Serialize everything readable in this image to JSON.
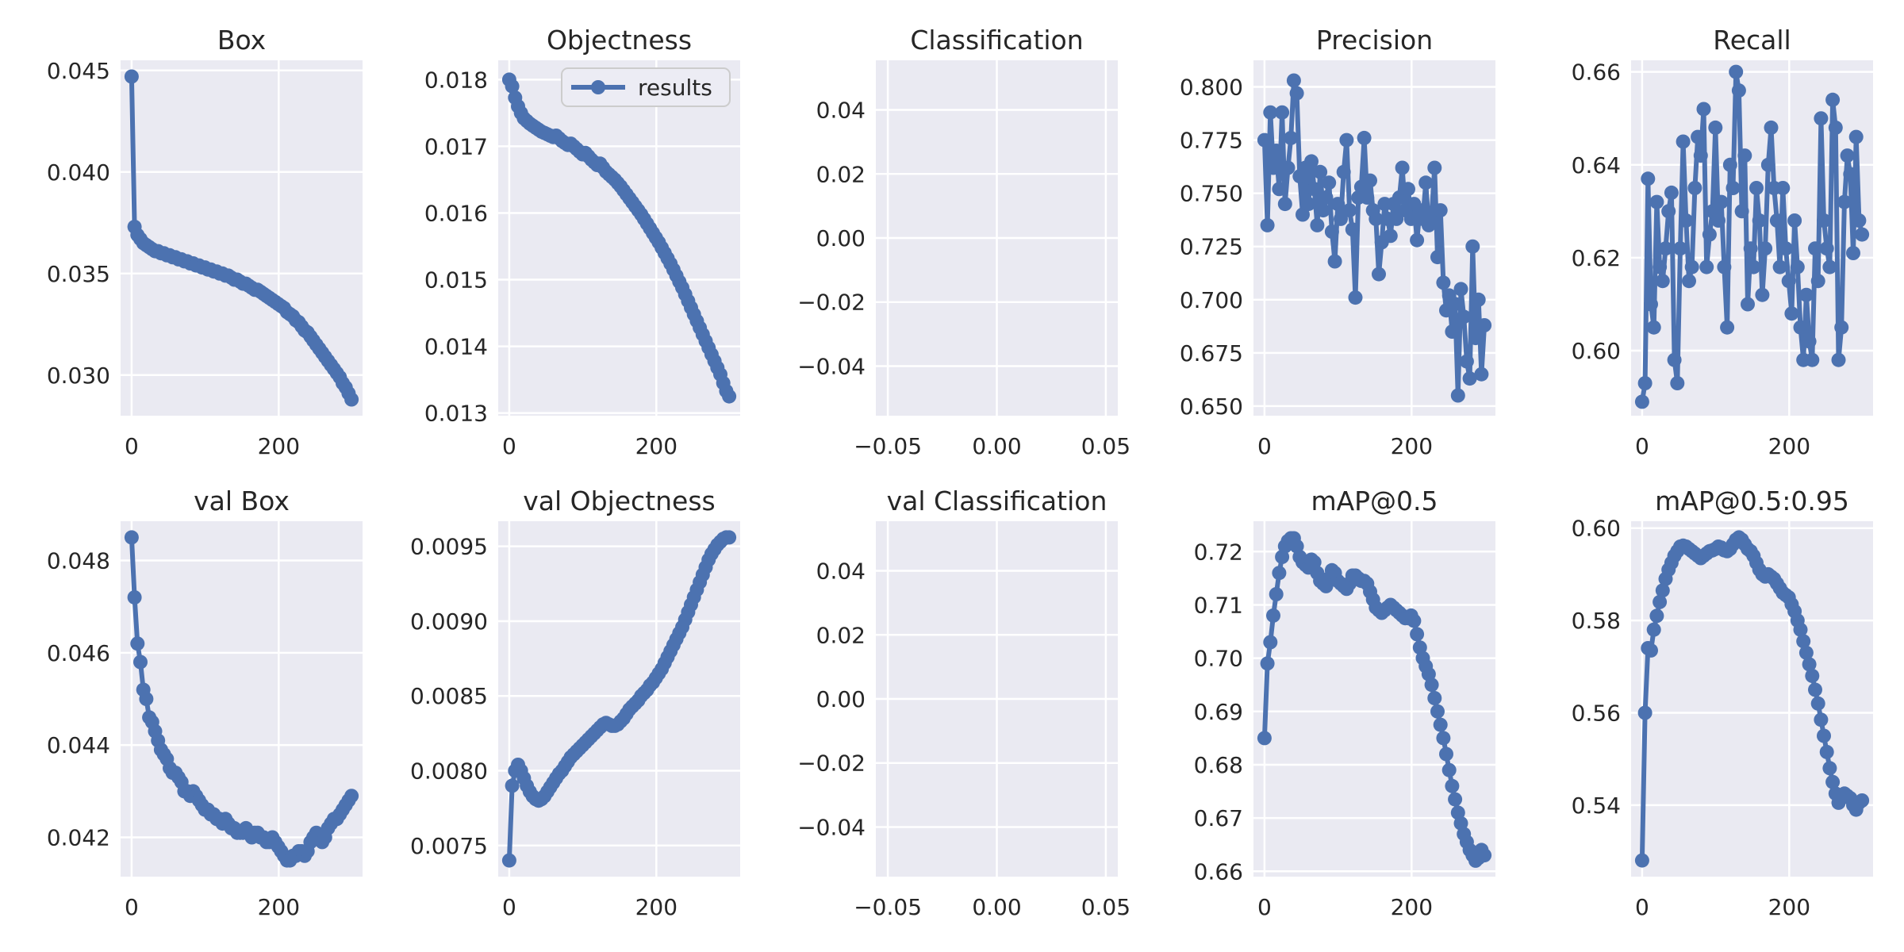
{
  "figure": {
    "kind": "training-results-figure",
    "grid": "2 rows x 5 columns",
    "background": "#ffffff"
  },
  "style": {
    "panel_bg": "#EAEAF2",
    "grid_color": "#FFFFFF",
    "line_color": "#4C72B0",
    "marker_color": "#4C72B0",
    "text_color": "#262626",
    "legend_face": "#ECECF4",
    "legend_edge": "#CCCCCC"
  },
  "chart_data": [
    {
      "type": "line",
      "title": "Box",
      "xlim": [
        -15,
        314
      ],
      "ylim": [
        0.028,
        0.0455
      ],
      "x_ticks": {
        "labels": [
          "0",
          "200"
        ],
        "values": [
          0,
          200
        ]
      },
      "y_ticks": {
        "labels": [
          "0.045",
          "0.040",
          "0.035",
          "0.030"
        ],
        "values": [
          0.045,
          0.04,
          0.035,
          0.03
        ]
      },
      "series": {
        "name": "results",
        "x_start": 0,
        "x_end": 299,
        "y": [
          0.0447,
          0.0373,
          0.0369,
          0.0367,
          0.0365,
          0.0364,
          0.0363,
          0.0362,
          0.0361,
          0.0361,
          0.036,
          0.036,
          0.0359,
          0.0359,
          0.0358,
          0.0358,
          0.0357,
          0.0357,
          0.0356,
          0.0356,
          0.0355,
          0.0355,
          0.0354,
          0.0354,
          0.0353,
          0.0353,
          0.0352,
          0.0352,
          0.0351,
          0.0351,
          0.035,
          0.035,
          0.0349,
          0.0349,
          0.0348,
          0.0347,
          0.0347,
          0.0346,
          0.0345,
          0.0345,
          0.0344,
          0.0343,
          0.0342,
          0.0342,
          0.0341,
          0.034,
          0.0339,
          0.0338,
          0.0337,
          0.0336,
          0.0335,
          0.0334,
          0.0333,
          0.0331,
          0.033,
          0.0329,
          0.0327,
          0.0326,
          0.0324,
          0.0322,
          0.0321,
          0.0319,
          0.0317,
          0.0315,
          0.0313,
          0.0311,
          0.0309,
          0.0307,
          0.0305,
          0.0303,
          0.0301,
          0.0299,
          0.0296,
          0.0294,
          0.0291,
          0.0288
        ]
      }
    },
    {
      "type": "line",
      "title": "Objectness",
      "legend": {
        "label": "results"
      },
      "xlim": [
        -15,
        314
      ],
      "ylim": [
        0.01296,
        0.01829
      ],
      "x_ticks": {
        "labels": [
          "0",
          "200"
        ],
        "values": [
          0,
          200
        ]
      },
      "y_ticks": {
        "labels": [
          "0.018",
          "0.017",
          "0.016",
          "0.015",
          "0.014",
          "0.013"
        ],
        "values": [
          0.018,
          0.017,
          0.016,
          0.015,
          0.014,
          0.013
        ]
      },
      "series": {
        "name": "results",
        "x_start": 0,
        "x_end": 299,
        "y": [
          0.018,
          0.0179,
          0.01773,
          0.0176,
          0.0175,
          0.01742,
          0.01738,
          0.01734,
          0.01731,
          0.01728,
          0.01725,
          0.01722,
          0.0172,
          0.01718,
          0.01716,
          0.01714,
          0.01716,
          0.01712,
          0.01708,
          0.01705,
          0.01702,
          0.01704,
          0.017,
          0.01696,
          0.01692,
          0.01688,
          0.0169,
          0.01685,
          0.0168,
          0.01676,
          0.01672,
          0.01674,
          0.01668,
          0.01662,
          0.01658,
          0.01654,
          0.0165,
          0.01645,
          0.0164,
          0.01634,
          0.01628,
          0.01622,
          0.01616,
          0.0161,
          0.01604,
          0.01598,
          0.01591,
          0.01584,
          0.01577,
          0.0157,
          0.01563,
          0.01556,
          0.01548,
          0.0154,
          0.01532,
          0.01524,
          0.01515,
          0.01506,
          0.01497,
          0.01488,
          0.01478,
          0.01468,
          0.01458,
          0.01448,
          0.01438,
          0.01428,
          0.01418,
          0.01408,
          0.01398,
          0.01388,
          0.01378,
          0.01368,
          0.01358,
          0.01345,
          0.01333,
          0.01325
        ]
      }
    },
    {
      "type": "line",
      "title": "Classification",
      "empty": true,
      "xlim": [
        -0.0555,
        0.0555
      ],
      "ylim": [
        -0.0555,
        0.0555
      ],
      "x_ticks": {
        "labels": [
          "−0.05",
          "0.00",
          "0.05"
        ],
        "values": [
          -0.05,
          0.0,
          0.05
        ]
      },
      "y_ticks": {
        "labels": [
          "0.04",
          "0.02",
          "0.00",
          "−0.02",
          "−0.04"
        ],
        "values": [
          0.04,
          0.02,
          0.0,
          -0.02,
          -0.04
        ]
      },
      "series": null
    },
    {
      "type": "line",
      "title": "Precision",
      "xlim": [
        -15,
        314
      ],
      "ylim": [
        0.6455,
        0.8125
      ],
      "x_ticks": {
        "labels": [
          "0",
          "200"
        ],
        "values": [
          0,
          200
        ]
      },
      "y_ticks": {
        "labels": [
          "0.800",
          "0.775",
          "0.750",
          "0.725",
          "0.700",
          "0.675",
          "0.650"
        ],
        "values": [
          0.8,
          0.775,
          0.75,
          0.725,
          0.7,
          0.675,
          0.65
        ]
      },
      "series": {
        "name": "results",
        "x_start": 0,
        "x_end": 299,
        "y": [
          0.775,
          0.735,
          0.788,
          0.762,
          0.77,
          0.752,
          0.788,
          0.745,
          0.762,
          0.776,
          0.803,
          0.797,
          0.758,
          0.74,
          0.762,
          0.745,
          0.765,
          0.752,
          0.735,
          0.76,
          0.742,
          0.748,
          0.755,
          0.732,
          0.718,
          0.745,
          0.738,
          0.76,
          0.775,
          0.742,
          0.733,
          0.701,
          0.748,
          0.753,
          0.776,
          0.748,
          0.756,
          0.742,
          0.738,
          0.712,
          0.727,
          0.745,
          0.738,
          0.73,
          0.745,
          0.738,
          0.748,
          0.762,
          0.742,
          0.752,
          0.738,
          0.745,
          0.728,
          0.742,
          0.738,
          0.755,
          0.735,
          0.74,
          0.762,
          0.72,
          0.742,
          0.708,
          0.695,
          0.702,
          0.685,
          0.698,
          0.655,
          0.705,
          0.692,
          0.671,
          0.663,
          0.725,
          0.682,
          0.7,
          0.665,
          0.688
        ]
      }
    },
    {
      "type": "line",
      "title": "Recall",
      "xlim": [
        -15,
        314
      ],
      "ylim": [
        0.586,
        0.6625
      ],
      "x_ticks": {
        "labels": [
          "0",
          "200"
        ],
        "values": [
          0,
          200
        ]
      },
      "y_ticks": {
        "labels": [
          "0.66",
          "0.64",
          "0.62",
          "0.60"
        ],
        "values": [
          0.66,
          0.64,
          0.62,
          0.6
        ]
      },
      "series": {
        "name": "results",
        "x_start": 0,
        "x_end": 299,
        "y": [
          0.589,
          0.593,
          0.637,
          0.61,
          0.605,
          0.632,
          0.618,
          0.615,
          0.622,
          0.63,
          0.634,
          0.598,
          0.593,
          0.622,
          0.645,
          0.628,
          0.615,
          0.618,
          0.635,
          0.646,
          0.642,
          0.652,
          0.618,
          0.625,
          0.63,
          0.648,
          0.628,
          0.632,
          0.618,
          0.605,
          0.64,
          0.635,
          0.66,
          0.656,
          0.63,
          0.642,
          0.61,
          0.622,
          0.618,
          0.635,
          0.628,
          0.612,
          0.622,
          0.64,
          0.648,
          0.635,
          0.628,
          0.618,
          0.635,
          0.622,
          0.615,
          0.608,
          0.628,
          0.618,
          0.605,
          0.598,
          0.612,
          0.602,
          0.598,
          0.622,
          0.615,
          0.65,
          0.628,
          0.622,
          0.618,
          0.654,
          0.648,
          0.598,
          0.605,
          0.632,
          0.642,
          0.638,
          0.621,
          0.646,
          0.628,
          0.625
        ]
      }
    },
    {
      "type": "line",
      "title": "val Box",
      "xlim": [
        -15,
        314
      ],
      "ylim": [
        0.04115,
        0.04885
      ],
      "x_ticks": {
        "labels": [
          "0",
          "200"
        ],
        "values": [
          0,
          200
        ]
      },
      "y_ticks": {
        "labels": [
          "0.048",
          "0.046",
          "0.044",
          "0.042"
        ],
        "values": [
          0.048,
          0.046,
          0.044,
          0.042
        ]
      },
      "series": {
        "name": "results",
        "x_start": 0,
        "x_end": 299,
        "y": [
          0.0485,
          0.0472,
          0.0462,
          0.0458,
          0.0452,
          0.045,
          0.0446,
          0.0445,
          0.0443,
          0.0441,
          0.0439,
          0.0438,
          0.0437,
          0.0435,
          0.0434,
          0.0434,
          0.0433,
          0.0432,
          0.043,
          0.043,
          0.0429,
          0.043,
          0.0429,
          0.0428,
          0.0427,
          0.0426,
          0.0426,
          0.0425,
          0.0425,
          0.0424,
          0.0424,
          0.0423,
          0.0424,
          0.0423,
          0.0422,
          0.0422,
          0.0421,
          0.0421,
          0.0421,
          0.0422,
          0.0421,
          0.042,
          0.0421,
          0.0421,
          0.042,
          0.042,
          0.0419,
          0.0419,
          0.042,
          0.0419,
          0.0418,
          0.0417,
          0.0416,
          0.0415,
          0.0415,
          0.0416,
          0.0416,
          0.0417,
          0.0417,
          0.0416,
          0.0417,
          0.0419,
          0.042,
          0.0421,
          0.042,
          0.0419,
          0.042,
          0.0422,
          0.0423,
          0.0424,
          0.0424,
          0.0425,
          0.0426,
          0.0427,
          0.0428,
          0.0429
        ]
      }
    },
    {
      "type": "line",
      "title": "val Objectness",
      "xlim": [
        -15,
        314
      ],
      "ylim": [
        0.007292,
        0.009668
      ],
      "x_ticks": {
        "labels": [
          "0",
          "200"
        ],
        "values": [
          0,
          200
        ]
      },
      "y_ticks": {
        "labels": [
          "0.0095",
          "0.0090",
          "0.0085",
          "0.0080",
          "0.0075"
        ],
        "values": [
          0.0095,
          0.009,
          0.0085,
          0.008,
          0.0075
        ]
      },
      "series": {
        "name": "results",
        "x_start": 0,
        "x_end": 299,
        "y": [
          0.0074,
          0.0079,
          0.008,
          0.00804,
          0.008,
          0.00795,
          0.0079,
          0.00786,
          0.00783,
          0.00781,
          0.0078,
          0.00781,
          0.00783,
          0.00786,
          0.00789,
          0.00792,
          0.00795,
          0.00798,
          0.008,
          0.00803,
          0.00806,
          0.00809,
          0.00811,
          0.00813,
          0.00815,
          0.00817,
          0.00819,
          0.00821,
          0.00823,
          0.00825,
          0.00827,
          0.00829,
          0.00831,
          0.00832,
          0.00831,
          0.0083,
          0.0083,
          0.00831,
          0.00833,
          0.00835,
          0.00838,
          0.00841,
          0.00843,
          0.00845,
          0.00847,
          0.0085,
          0.00852,
          0.00854,
          0.00857,
          0.00859,
          0.00862,
          0.00865,
          0.00868,
          0.00872,
          0.00876,
          0.0088,
          0.00884,
          0.00888,
          0.00892,
          0.00896,
          0.00901,
          0.00906,
          0.00911,
          0.00916,
          0.00921,
          0.00926,
          0.00931,
          0.00936,
          0.00941,
          0.00945,
          0.00948,
          0.00951,
          0.00953,
          0.00955,
          0.00956,
          0.00956
        ]
      }
    },
    {
      "type": "line",
      "title": "val Classification",
      "empty": true,
      "xlim": [
        -0.0555,
        0.0555
      ],
      "ylim": [
        -0.0555,
        0.0555
      ],
      "x_ticks": {
        "labels": [
          "−0.05",
          "0.00",
          "0.05"
        ],
        "values": [
          -0.05,
          0.0,
          0.05
        ]
      },
      "y_ticks": {
        "labels": [
          "0.04",
          "0.02",
          "0.00",
          "−0.02",
          "−0.04"
        ],
        "values": [
          0.04,
          0.02,
          0.0,
          -0.02,
          -0.04
        ]
      },
      "series": null
    },
    {
      "type": "line",
      "title": "mAP@0.5",
      "xlim": [
        -15,
        314
      ],
      "ylim": [
        0.659,
        0.7257
      ],
      "x_ticks": {
        "labels": [
          "0",
          "200"
        ],
        "values": [
          0,
          200
        ]
      },
      "y_ticks": {
        "labels": [
          "0.72",
          "0.71",
          "0.70",
          "0.69",
          "0.68",
          "0.67",
          "0.66"
        ],
        "values": [
          0.72,
          0.71,
          0.7,
          0.69,
          0.68,
          0.67,
          0.66
        ]
      },
      "series": {
        "name": "results",
        "x_start": 0,
        "x_end": 299,
        "y": [
          0.685,
          0.699,
          0.703,
          0.708,
          0.712,
          0.716,
          0.719,
          0.721,
          0.722,
          0.7225,
          0.7225,
          0.721,
          0.719,
          0.718,
          0.7175,
          0.717,
          0.7185,
          0.718,
          0.716,
          0.7145,
          0.714,
          0.7135,
          0.715,
          0.7165,
          0.716,
          0.7145,
          0.714,
          0.7135,
          0.713,
          0.714,
          0.7155,
          0.7155,
          0.715,
          0.7145,
          0.7145,
          0.714,
          0.7125,
          0.711,
          0.7095,
          0.709,
          0.7085,
          0.709,
          0.7095,
          0.71,
          0.7095,
          0.709,
          0.7085,
          0.708,
          0.7075,
          0.7075,
          0.708,
          0.707,
          0.7045,
          0.702,
          0.7,
          0.6985,
          0.697,
          0.695,
          0.6925,
          0.69,
          0.6875,
          0.685,
          0.682,
          0.679,
          0.676,
          0.6735,
          0.671,
          0.669,
          0.667,
          0.6655,
          0.664,
          0.663,
          0.662,
          0.6625,
          0.664,
          0.663
        ]
      }
    },
    {
      "type": "line",
      "title": "mAP@0.5:0.95",
      "xlim": [
        -15,
        314
      ],
      "ylim": [
        0.5245,
        0.6015
      ],
      "x_ticks": {
        "labels": [
          "0",
          "200"
        ],
        "values": [
          0,
          200
        ]
      },
      "y_ticks": {
        "labels": [
          "0.60",
          "0.58",
          "0.56",
          "0.54"
        ],
        "values": [
          0.6,
          0.58,
          0.56,
          0.54
        ]
      },
      "series": {
        "name": "results",
        "x_start": 0,
        "x_end": 299,
        "y": [
          0.528,
          0.56,
          0.574,
          0.5735,
          0.578,
          0.581,
          0.584,
          0.5865,
          0.589,
          0.591,
          0.5925,
          0.594,
          0.595,
          0.596,
          0.5962,
          0.596,
          0.5955,
          0.595,
          0.5945,
          0.594,
          0.5935,
          0.594,
          0.5945,
          0.595,
          0.5952,
          0.5955,
          0.596,
          0.5958,
          0.5952,
          0.595,
          0.5955,
          0.5965,
          0.5975,
          0.598,
          0.5975,
          0.5965,
          0.5955,
          0.595,
          0.594,
          0.5925,
          0.591,
          0.59,
          0.5895,
          0.59,
          0.5895,
          0.589,
          0.588,
          0.587,
          0.586,
          0.5855,
          0.585,
          0.5835,
          0.582,
          0.58,
          0.578,
          0.5755,
          0.573,
          0.5705,
          0.568,
          0.565,
          0.562,
          0.5585,
          0.555,
          0.5515,
          0.548,
          0.545,
          0.5425,
          0.5405,
          0.5415,
          0.5425,
          0.542,
          0.5415,
          0.54,
          0.539,
          0.5405,
          0.541
        ]
      }
    }
  ]
}
